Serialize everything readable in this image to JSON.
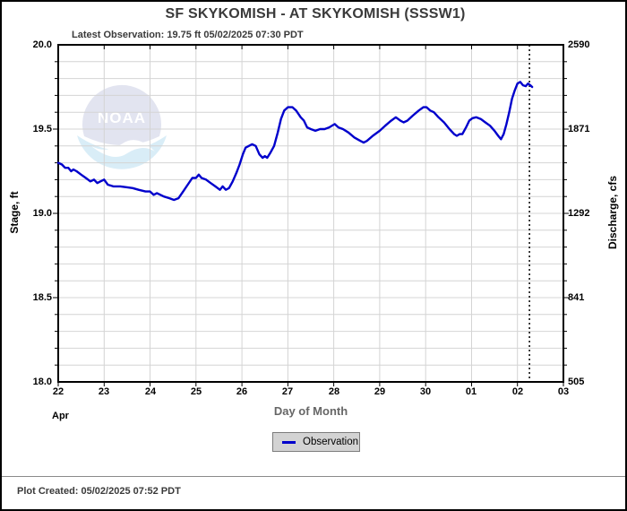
{
  "header": {
    "title": "SF SKYKOMISH - AT SKYKOMISH  (SSSW1)",
    "subtitle": "Latest Observation: 19.75 ft 05/02/2025 07:30 PDT"
  },
  "legend": {
    "label": "Observation"
  },
  "footer": {
    "plot_created": "Plot Created: 05/02/2025 07:52 PDT"
  },
  "watermark": {
    "text": "NOAA"
  },
  "colors": {
    "line": "#0000cc",
    "grid": "#d4d4d4",
    "axis": "#000000",
    "legend_bg": "#d3d3d3",
    "watermark_dome": "#e2e4f0",
    "watermark_swoosh": "#d9edf7"
  },
  "chart_data": {
    "type": "line",
    "title": "SF SKYKOMISH - AT SKYKOMISH  (SSSW1)",
    "xlabel": "Day of Month",
    "x_month_label": "Apr",
    "ylabel_left": "Stage, ft",
    "ylabel_right": "Discharge, cfs",
    "ylim_left": [
      18.0,
      20.0
    ],
    "grid": true,
    "legend_position": "bottom",
    "x_ticks": [
      "22",
      "23",
      "24",
      "25",
      "26",
      "27",
      "28",
      "29",
      "30",
      "01",
      "02",
      "03"
    ],
    "y_ticks_left": [
      "20.0",
      "19.5",
      "19.0",
      "18.5",
      "18.0"
    ],
    "y_ticks_left_values": [
      20.0,
      19.5,
      19.0,
      18.5,
      18.0
    ],
    "y_ticks_right": [
      "2590",
      "1871",
      "1292",
      "841",
      "505"
    ],
    "minor_y_step_ft": 0.1,
    "latest_observation": {
      "stage_ft": 19.75,
      "time": "05/02/2025 07:30 PDT"
    },
    "latest_marker_day": 10.26,
    "series": [
      {
        "name": "Observation",
        "color": "#0000cc",
        "x_days_from_apr22": [
          0,
          0.08,
          0.15,
          0.22,
          0.28,
          0.33,
          0.4,
          0.5,
          0.6,
          0.7,
          0.78,
          0.85,
          0.92,
          1.0,
          1.08,
          1.2,
          1.35,
          1.5,
          1.62,
          1.75,
          1.9,
          2.0,
          2.08,
          2.15,
          2.3,
          2.42,
          2.52,
          2.62,
          2.72,
          2.82,
          2.92,
          3.0,
          3.06,
          3.12,
          3.22,
          3.32,
          3.42,
          3.52,
          3.58,
          3.65,
          3.72,
          3.8,
          3.88,
          3.95,
          4.02,
          4.08,
          4.15,
          4.22,
          4.3,
          4.38,
          4.45,
          4.5,
          4.55,
          4.62,
          4.7,
          4.78,
          4.85,
          4.92,
          5.0,
          5.1,
          5.18,
          5.28,
          5.35,
          5.42,
          5.5,
          5.6,
          5.7,
          5.8,
          5.9,
          6.02,
          6.1,
          6.2,
          6.32,
          6.45,
          6.58,
          6.65,
          6.72,
          6.85,
          7.0,
          7.12,
          7.25,
          7.35,
          7.45,
          7.52,
          7.6,
          7.72,
          7.85,
          7.95,
          8.02,
          8.1,
          8.18,
          8.28,
          8.4,
          8.52,
          8.62,
          8.68,
          8.74,
          8.8,
          8.88,
          8.95,
          9.02,
          9.1,
          9.2,
          9.3,
          9.4,
          9.5,
          9.58,
          9.64,
          9.7,
          9.76,
          9.82,
          9.88,
          9.94,
          10.0,
          10.06,
          10.12,
          10.18,
          10.23,
          10.28,
          10.32
        ],
        "stage_ft": [
          19.3,
          19.29,
          19.27,
          19.27,
          19.25,
          19.26,
          19.25,
          19.23,
          19.21,
          19.19,
          19.2,
          19.18,
          19.19,
          19.2,
          19.17,
          19.16,
          19.16,
          19.155,
          19.15,
          19.14,
          19.13,
          19.13,
          19.11,
          19.12,
          19.1,
          19.09,
          19.08,
          19.09,
          19.13,
          19.17,
          19.21,
          19.21,
          19.23,
          19.21,
          19.2,
          19.18,
          19.16,
          19.14,
          19.16,
          19.14,
          19.15,
          19.19,
          19.24,
          19.29,
          19.35,
          19.39,
          19.4,
          19.41,
          19.4,
          19.35,
          19.33,
          19.34,
          19.33,
          19.36,
          19.4,
          19.48,
          19.56,
          19.61,
          19.63,
          19.63,
          19.61,
          19.57,
          19.55,
          19.51,
          19.5,
          19.49,
          19.5,
          19.5,
          19.51,
          19.53,
          19.51,
          19.5,
          19.48,
          19.45,
          19.43,
          19.42,
          19.43,
          19.46,
          19.49,
          19.52,
          19.55,
          19.57,
          19.55,
          19.54,
          19.55,
          19.58,
          19.61,
          19.63,
          19.63,
          19.61,
          19.6,
          19.57,
          19.54,
          19.5,
          19.47,
          19.46,
          19.47,
          19.47,
          19.51,
          19.55,
          19.565,
          19.57,
          19.56,
          19.54,
          19.52,
          19.49,
          19.46,
          19.44,
          19.47,
          19.53,
          19.6,
          19.68,
          19.73,
          19.77,
          19.78,
          19.76,
          19.755,
          19.77,
          19.76,
          19.75
        ]
      }
    ]
  }
}
